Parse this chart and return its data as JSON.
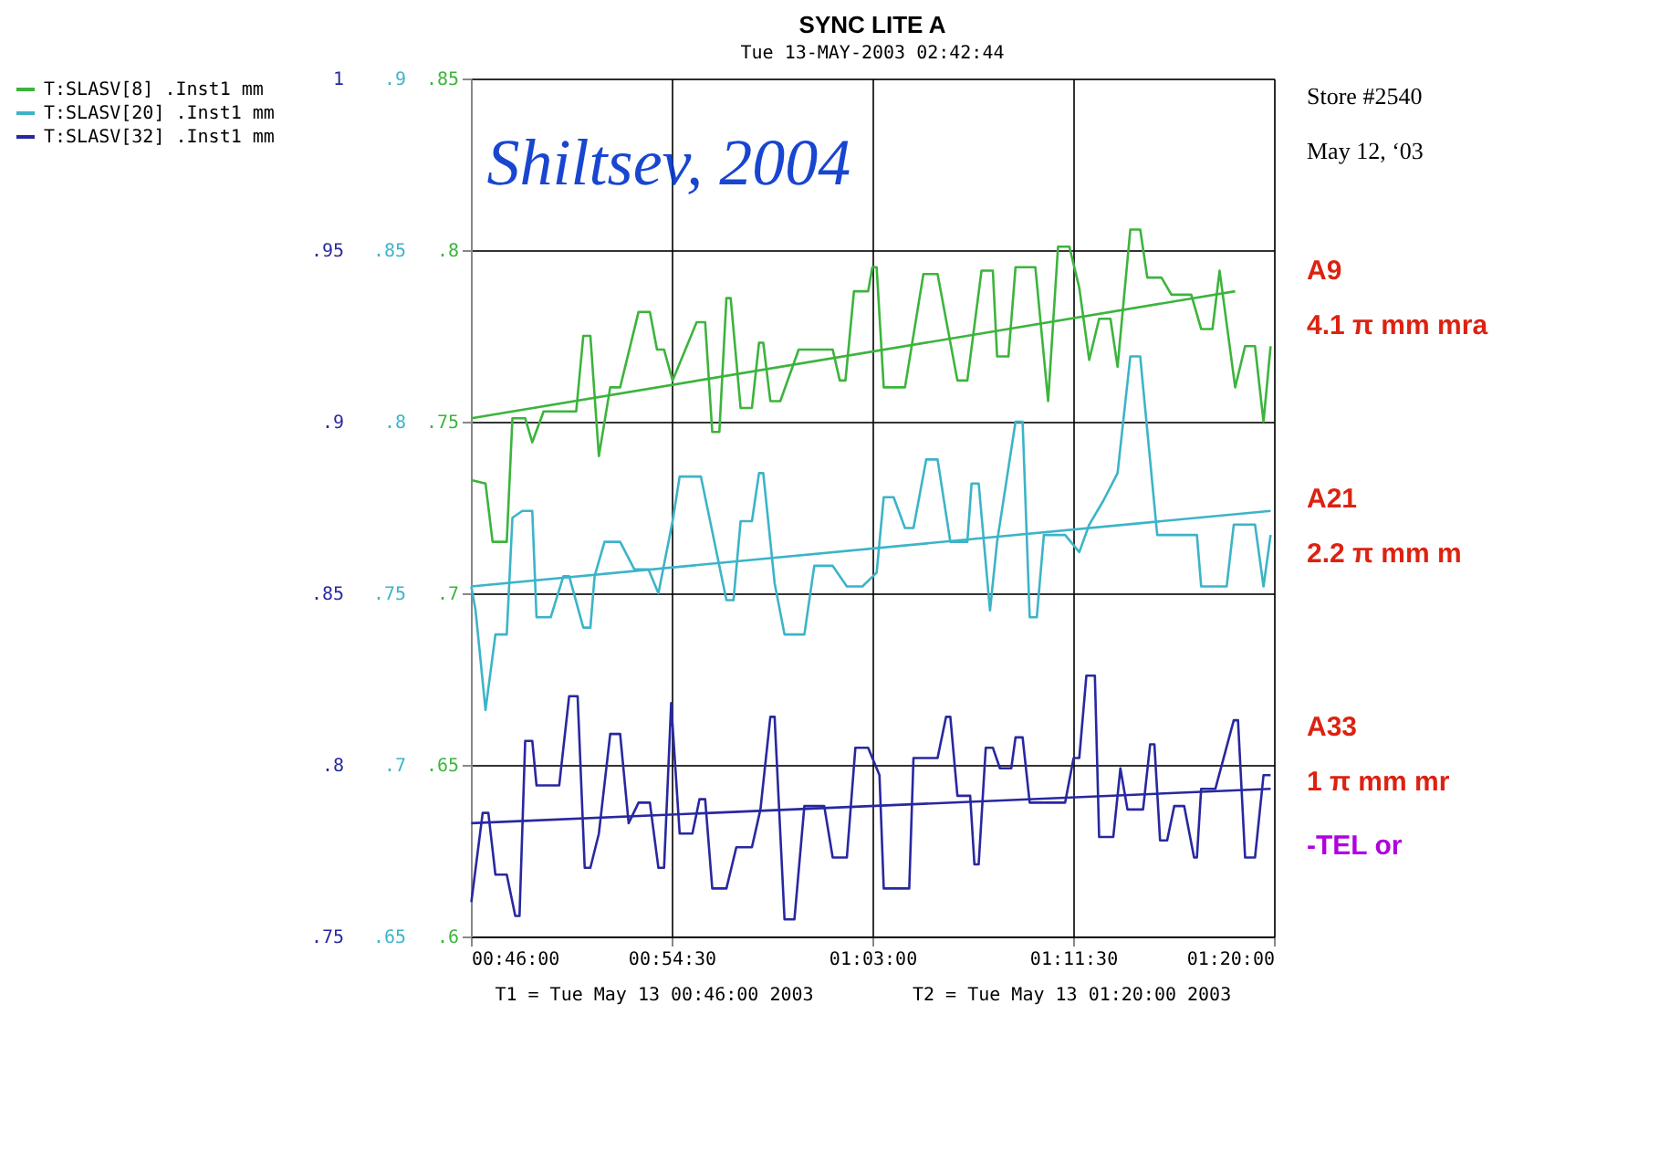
{
  "chart_data": {
    "type": "line",
    "title": "SYNC LITE A",
    "subtitle": "Tue 13-MAY-2003 02:42:44",
    "xlim": [
      0.76667,
      1.33333
    ],
    "xticks": [
      {
        "value": 0.76667,
        "label": "00:46:00"
      },
      {
        "value": 0.90833,
        "label": "00:54:30"
      },
      {
        "value": 1.05,
        "label": "01:03:00"
      },
      {
        "value": 1.19167,
        "label": "01:11:30"
      },
      {
        "value": 1.33333,
        "label": "01:20:00"
      }
    ],
    "ylim": [
      0.6,
      0.85
    ],
    "yticks": [
      {
        "value": 0.6,
        "label": ".6"
      },
      {
        "value": 0.65,
        "label": ".65"
      },
      {
        "value": 0.7,
        "label": ".7"
      },
      {
        "value": 0.75,
        "label": ".75"
      },
      {
        "value": 0.8,
        "label": ".8"
      },
      {
        "value": 0.85,
        "label": ".85"
      }
    ],
    "y2lim": [
      0.65,
      0.9
    ],
    "y2ticks": [
      {
        "value": 0.65,
        "label": ".65"
      },
      {
        "value": 0.7,
        "label": ".7"
      },
      {
        "value": 0.75,
        "label": ".75"
      },
      {
        "value": 0.8,
        "label": ".8"
      },
      {
        "value": 0.85,
        "label": ".85"
      },
      {
        "value": 0.9,
        "label": ".9"
      }
    ],
    "y3lim": [
      0.75,
      1.0
    ],
    "y3ticks": [
      {
        "value": 0.75,
        "label": ".75"
      },
      {
        "value": 0.8,
        "label": ".8"
      },
      {
        "value": 0.85,
        "label": ".85"
      },
      {
        "value": 0.9,
        "label": ".9"
      },
      {
        "value": 0.95,
        "label": ".95"
      },
      1
    ],
    "grid": true,
    "legend": "left",
    "line_style": "solid",
    "marker": "none",
    "annotations": [
      "T1 = Tue May 13 00:46:00 2003",
      "T2 = Tue May 13 01:20:00 2003",
      "Store #2540",
      "May 12, ‘03",
      "A9",
      "4.1 π mm mra",
      "A21",
      "2.2 π mm m",
      "A33",
      "1 π mm mr",
      "-TEL or",
      "Shiltsev, 2004"
    ],
    "series": [
      {
        "name": "T:SLASV[8] .Inst1 mm",
        "color": "#3cb43c",
        "x": [
          0.767,
          0.777,
          0.782,
          0.792,
          0.796,
          0.805,
          0.81,
          0.818,
          0.841,
          0.846,
          0.851,
          0.857,
          0.865,
          0.872,
          0.885,
          0.893,
          0.898,
          0.903,
          0.909,
          0.926,
          0.932,
          0.937,
          0.942,
          0.947,
          0.95,
          0.957,
          0.965,
          0.97,
          0.973,
          0.978,
          0.985,
          0.998,
          1.022,
          1.027,
          1.031,
          1.037,
          1.047,
          1.05,
          1.053,
          1.058,
          1.073,
          1.086,
          1.096,
          1.11,
          1.117,
          1.127,
          1.135,
          1.138,
          1.146,
          1.151,
          1.165,
          1.174,
          1.181,
          1.189,
          1.196,
          1.203,
          1.21,
          1.218,
          1.223,
          1.232,
          1.239,
          1.244,
          1.254,
          1.261,
          1.275,
          1.282,
          1.29,
          1.295,
          1.306,
          1.313,
          1.32,
          1.326,
          1.331
        ],
        "values": [
          0.733,
          0.732,
          0.715,
          0.715,
          0.751,
          0.751,
          0.744,
          0.753,
          0.753,
          0.775,
          0.775,
          0.74,
          0.76,
          0.76,
          0.782,
          0.782,
          0.771,
          0.771,
          0.762,
          0.779,
          0.779,
          0.747,
          0.747,
          0.786,
          0.786,
          0.754,
          0.754,
          0.773,
          0.773,
          0.756,
          0.756,
          0.771,
          0.771,
          0.762,
          0.762,
          0.788,
          0.788,
          0.795,
          0.795,
          0.76,
          0.76,
          0.793,
          0.793,
          0.762,
          0.762,
          0.794,
          0.794,
          0.769,
          0.769,
          0.795,
          0.795,
          0.756,
          0.801,
          0.801,
          0.789,
          0.768,
          0.78,
          0.78,
          0.766,
          0.806,
          0.806,
          0.792,
          0.792,
          0.787,
          0.787,
          0.777,
          0.777,
          0.794,
          0.76,
          0.772,
          0.772,
          0.75,
          0.772
        ]
      },
      {
        "color": "#3cb43c",
        "type": "line",
        "x": [
          0.767,
          1.306
        ],
        "values": [
          0.751,
          0.788
        ]
      },
      {
        "name": "T:SLASV[20] .Inst1 mm",
        "color": "#3cb4c8",
        "axis": "y2",
        "x": [
          0.767,
          0.77,
          0.777,
          0.784,
          0.792,
          0.796,
          0.803,
          0.81,
          0.813,
          0.823,
          0.832,
          0.836,
          0.846,
          0.851,
          0.854,
          0.861,
          0.872,
          0.882,
          0.892,
          0.899,
          0.909,
          0.914,
          0.929,
          0.935,
          0.947,
          0.952,
          0.957,
          0.965,
          0.97,
          0.973,
          0.981,
          0.988,
          1.002,
          1.009,
          1.022,
          1.032,
          1.043,
          1.053,
          1.058,
          1.065,
          1.073,
          1.079,
          1.088,
          1.096,
          1.105,
          1.117,
          1.12,
          1.125,
          1.133,
          1.138,
          1.151,
          1.156,
          1.161,
          1.166,
          1.171,
          1.186,
          1.196,
          1.203,
          1.213,
          1.223,
          1.232,
          1.239,
          1.251,
          1.279,
          1.282,
          1.3,
          1.305,
          1.32,
          1.326,
          1.331
        ],
        "values": [
          0.752,
          0.745,
          0.716,
          0.738,
          0.738,
          0.772,
          0.774,
          0.774,
          0.743,
          0.743,
          0.755,
          0.755,
          0.74,
          0.74,
          0.755,
          0.765,
          0.765,
          0.757,
          0.757,
          0.75,
          0.771,
          0.784,
          0.784,
          0.772,
          0.748,
          0.748,
          0.771,
          0.771,
          0.785,
          0.785,
          0.753,
          0.738,
          0.738,
          0.758,
          0.758,
          0.752,
          0.752,
          0.756,
          0.778,
          0.778,
          0.769,
          0.769,
          0.789,
          0.789,
          0.765,
          0.765,
          0.782,
          0.782,
          0.745,
          0.765,
          0.8,
          0.8,
          0.743,
          0.743,
          0.767,
          0.767,
          0.762,
          0.77,
          0.777,
          0.785,
          0.819,
          0.819,
          0.767,
          0.767,
          0.752,
          0.752,
          0.77,
          0.77,
          0.752,
          0.767
        ]
      },
      {
        "color": "#3cb4c8",
        "type": "line",
        "axis": "y2",
        "x": [
          0.767,
          1.331
        ],
        "values": [
          0.752,
          0.774
        ]
      },
      {
        "name": "T:SLASV[32] .Inst1 mm",
        "color": "#2828a0",
        "axis": "y3",
        "x": [
          0.767,
          0.775,
          0.779,
          0.784,
          0.792,
          0.798,
          0.801,
          0.805,
          0.81,
          0.813,
          0.829,
          0.836,
          0.842,
          0.847,
          0.851,
          0.857,
          0.865,
          0.872,
          0.878,
          0.885,
          0.893,
          0.899,
          0.903,
          0.908,
          0.914,
          0.923,
          0.928,
          0.932,
          0.937,
          0.947,
          0.954,
          0.965,
          0.971,
          0.978,
          0.981,
          0.988,
          0.995,
          1.002,
          1.016,
          1.022,
          1.032,
          1.038,
          1.047,
          1.055,
          1.058,
          1.076,
          1.079,
          1.096,
          1.102,
          1.105,
          1.11,
          1.119,
          1.122,
          1.125,
          1.13,
          1.135,
          1.14,
          1.148,
          1.151,
          1.156,
          1.161,
          1.186,
          1.192,
          1.196,
          1.201,
          1.207,
          1.21,
          1.22,
          1.225,
          1.23,
          1.241,
          1.246,
          1.249,
          1.253,
          1.258,
          1.263,
          1.27,
          1.277,
          1.279,
          1.282,
          1.292,
          1.305,
          1.308,
          1.313,
          1.32,
          1.326,
          1.331
        ],
        "values": [
          0.76,
          0.786,
          0.786,
          0.768,
          0.768,
          0.756,
          0.756,
          0.807,
          0.807,
          0.794,
          0.794,
          0.82,
          0.82,
          0.77,
          0.77,
          0.78,
          0.809,
          0.809,
          0.783,
          0.789,
          0.789,
          0.77,
          0.77,
          0.818,
          0.78,
          0.78,
          0.79,
          0.79,
          0.764,
          0.764,
          0.776,
          0.776,
          0.787,
          0.814,
          0.814,
          0.755,
          0.755,
          0.788,
          0.788,
          0.773,
          0.773,
          0.805,
          0.805,
          0.797,
          0.764,
          0.764,
          0.802,
          0.802,
          0.814,
          0.814,
          0.791,
          0.791,
          0.771,
          0.771,
          0.805,
          0.805,
          0.799,
          0.799,
          0.808,
          0.808,
          0.789,
          0.789,
          0.802,
          0.802,
          0.826,
          0.826,
          0.779,
          0.779,
          0.799,
          0.787,
          0.787,
          0.806,
          0.806,
          0.778,
          0.778,
          0.788,
          0.788,
          0.773,
          0.773,
          0.793,
          0.793,
          0.813,
          0.813,
          0.773,
          0.773,
          0.797,
          0.797
        ]
      },
      {
        "color": "#2828a0",
        "type": "line",
        "axis": "y3",
        "x": [
          0.767,
          1.331
        ],
        "values": [
          0.783,
          0.793
        ]
      }
    ]
  }
}
